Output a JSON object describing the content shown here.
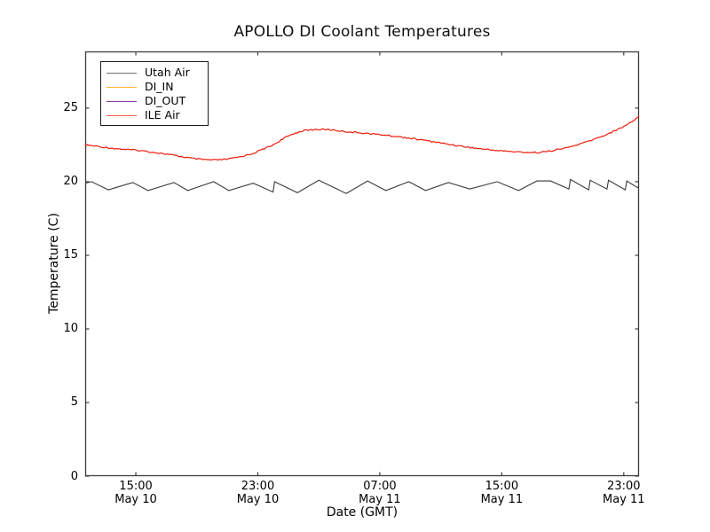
{
  "chart_data": {
    "type": "line",
    "title": "APOLLO DI Coolant Temperatures",
    "xlabel": "Date (GMT)",
    "ylabel": "Temperature (C)",
    "grid": false,
    "legend_position": "upper left",
    "ylim": [
      0,
      28.85
    ],
    "xlim_hours_from_may10_0000": [
      11.68,
      48.0
    ],
    "y_ticks": [
      "0",
      "5",
      "10",
      "15",
      "20",
      "25"
    ],
    "y_tick_values": [
      0,
      5,
      10,
      15,
      20,
      25
    ],
    "x_ticks": [
      {
        "hour": 15,
        "time": "15:00",
        "date": "May 10"
      },
      {
        "hour": 23,
        "time": "23:00",
        "date": "May 10"
      },
      {
        "hour": 31,
        "time": "07:00",
        "date": "May 11"
      },
      {
        "hour": 39,
        "time": "15:00",
        "date": "May 11"
      },
      {
        "hour": 47,
        "time": "23:00",
        "date": "May 11"
      }
    ],
    "legend": [
      {
        "name": "Utah Air",
        "color": "#6e6e6e"
      },
      {
        "name": "DI_IN",
        "color": "#ffb42e"
      },
      {
        "name": "DI_OUT",
        "color": "#8b3fa0"
      },
      {
        "name": "ILE Air",
        "color": "#f95d4d"
      }
    ],
    "series": [
      {
        "name": "Utah Air",
        "color": "#3a3a3a",
        "style": "jagged",
        "visible": true,
        "points": [
          [
            11.68,
            19.9
          ],
          [
            12.1,
            20.0
          ],
          [
            13.2,
            19.45
          ],
          [
            14.8,
            19.95
          ],
          [
            15.8,
            19.4
          ],
          [
            17.5,
            19.95
          ],
          [
            18.4,
            19.4
          ],
          [
            20.1,
            20.0
          ],
          [
            21.1,
            19.4
          ],
          [
            22.7,
            19.9
          ],
          [
            24.0,
            19.3
          ],
          [
            24.1,
            20.0
          ],
          [
            24.4,
            19.85
          ],
          [
            25.6,
            19.25
          ],
          [
            27.0,
            20.1
          ],
          [
            28.8,
            19.2
          ],
          [
            30.2,
            20.05
          ],
          [
            31.4,
            19.4
          ],
          [
            32.9,
            20.0
          ],
          [
            34.0,
            19.4
          ],
          [
            35.5,
            19.95
          ],
          [
            36.9,
            19.5
          ],
          [
            38.7,
            20.0
          ],
          [
            40.1,
            19.4
          ],
          [
            41.3,
            20.05
          ],
          [
            42.2,
            20.05
          ],
          [
            43.4,
            19.5
          ],
          [
            43.5,
            20.15
          ],
          [
            44.7,
            19.45
          ],
          [
            44.8,
            20.1
          ],
          [
            45.9,
            19.5
          ],
          [
            46.0,
            20.1
          ],
          [
            47.1,
            19.45
          ],
          [
            47.2,
            20.05
          ],
          [
            47.9,
            19.6
          ],
          [
            48.0,
            19.7
          ]
        ]
      },
      {
        "name": "DI_IN",
        "color": "#ffb42e",
        "style": "smooth",
        "visible": false,
        "points": []
      },
      {
        "name": "DI_OUT",
        "color": "#8b3fa0",
        "style": "smooth",
        "visible": false,
        "points": []
      },
      {
        "name": "ILE Air",
        "color": "#ec1c0c",
        "style": "smooth-noisy",
        "visible": true,
        "points": [
          [
            11.68,
            22.5
          ],
          [
            13.7,
            22.25
          ],
          [
            15.4,
            22.1
          ],
          [
            17.15,
            21.85
          ],
          [
            18.6,
            21.6
          ],
          [
            19.5,
            21.5
          ],
          [
            20.4,
            21.48
          ],
          [
            21.4,
            21.6
          ],
          [
            22.6,
            21.9
          ],
          [
            23.3,
            22.2
          ],
          [
            23.9,
            22.45
          ],
          [
            24.4,
            22.75
          ],
          [
            25.0,
            23.1
          ],
          [
            25.6,
            23.35
          ],
          [
            26.3,
            23.5
          ],
          [
            27.5,
            23.55
          ],
          [
            28.8,
            23.4
          ],
          [
            30.5,
            23.25
          ],
          [
            32.3,
            23.05
          ],
          [
            34.0,
            22.8
          ],
          [
            35.8,
            22.5
          ],
          [
            37.5,
            22.25
          ],
          [
            39.0,
            22.1
          ],
          [
            40.5,
            22.0
          ],
          [
            41.5,
            22.0
          ],
          [
            42.5,
            22.15
          ],
          [
            43.6,
            22.4
          ],
          [
            45.1,
            22.9
          ],
          [
            46.5,
            23.5
          ],
          [
            47.4,
            24.0
          ],
          [
            48.0,
            24.45
          ]
        ]
      }
    ],
    "spine_color": "#3d3d3d"
  }
}
